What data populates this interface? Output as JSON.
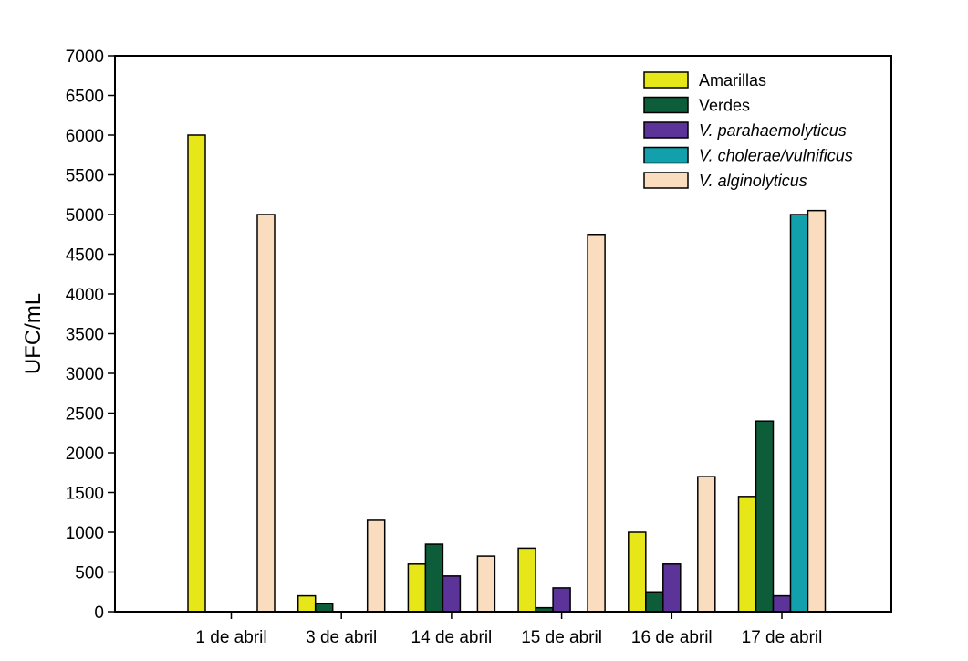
{
  "chart_data": {
    "type": "bar",
    "title": "",
    "xlabel": "",
    "ylabel": "UFC/mL",
    "ylim": [
      0,
      7000
    ],
    "yticks": [
      0,
      500,
      1000,
      1500,
      2000,
      2500,
      3000,
      3500,
      4000,
      4500,
      5000,
      5500,
      6000,
      6500,
      7000
    ],
    "grid": false,
    "legend_position": "top-right",
    "categories": [
      "1 de abril",
      "3 de abril",
      "14 de abril",
      "15 de abril",
      "16 de abril",
      "17 de abril"
    ],
    "series": [
      {
        "name": "Amarillas",
        "italic": false,
        "color": "#e6e619",
        "values": [
          6000,
          200,
          600,
          800,
          1000,
          1450
        ]
      },
      {
        "name": "Verdes",
        "italic": false,
        "color": "#0d5c3a",
        "values": [
          0,
          100,
          850,
          50,
          250,
          2400
        ]
      },
      {
        "name": "V. parahaemolyticus",
        "italic": true,
        "color": "#5b3399",
        "values": [
          0,
          0,
          450,
          300,
          600,
          200
        ]
      },
      {
        "name": "V. cholerae/vulnificus",
        "italic": true,
        "color": "#12a0ac",
        "values": [
          0,
          0,
          0,
          0,
          0,
          5000
        ]
      },
      {
        "name": "V. alginolyticus",
        "italic": true,
        "color": "#fadcbe",
        "values": [
          5000,
          1150,
          700,
          4750,
          1700,
          5050
        ]
      }
    ]
  }
}
